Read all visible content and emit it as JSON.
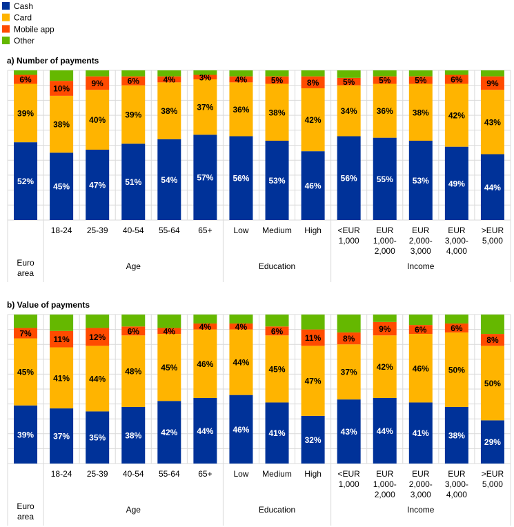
{
  "legend": [
    {
      "name": "Cash",
      "color": "#003299"
    },
    {
      "name": "Card",
      "color": "#FFB400"
    },
    {
      "name": "Mobile app",
      "color": "#FF4B00"
    },
    {
      "name": "Other",
      "color": "#65B800"
    }
  ],
  "chart_data": [
    {
      "type": "bar",
      "stacked": true,
      "title": "a) Number of payments",
      "ylim": [
        0,
        100
      ],
      "grid": true,
      "legend_position": "top-left",
      "categories": [
        [
          "Euro",
          "area"
        ],
        [
          "18-24"
        ],
        [
          "25-39"
        ],
        [
          "40-54"
        ],
        [
          "55-64"
        ],
        [
          "65+"
        ],
        [
          "Low"
        ],
        [
          "Medium"
        ],
        [
          "High"
        ],
        [
          "<EUR",
          "1,000"
        ],
        [
          "EUR",
          "1,000-",
          "2,000"
        ],
        [
          "EUR",
          "2,000-",
          "3,000"
        ],
        [
          "EUR",
          "3,000-",
          "4,000"
        ],
        [
          ">EUR",
          "5,000"
        ]
      ],
      "groups": [
        {
          "label": "Age",
          "from": 1,
          "to": 5
        },
        {
          "label": "Education",
          "from": 6,
          "to": 8
        },
        {
          "label": "Income",
          "from": 9,
          "to": 13
        }
      ],
      "series": [
        {
          "name": "Cash",
          "values": [
            52,
            45,
            47,
            51,
            54,
            57,
            56,
            53,
            46,
            56,
            55,
            53,
            49,
            44
          ]
        },
        {
          "name": "Card",
          "values": [
            39,
            38,
            40,
            39,
            38,
            37,
            36,
            38,
            42,
            34,
            36,
            38,
            42,
            43
          ]
        },
        {
          "name": "Mobile app",
          "values": [
            6,
            10,
            9,
            6,
            4,
            3,
            4,
            5,
            8,
            5,
            5,
            5,
            6,
            9
          ]
        },
        {
          "name": "Other",
          "values": [
            3,
            7,
            4,
            4,
            4,
            3,
            4,
            4,
            4,
            5,
            4,
            4,
            3,
            4
          ]
        }
      ]
    },
    {
      "type": "bar",
      "stacked": true,
      "title": "b) Value of payments",
      "ylim": [
        0,
        100
      ],
      "grid": true,
      "categories": [
        [
          "Euro",
          "area"
        ],
        [
          "18-24"
        ],
        [
          "25-39"
        ],
        [
          "40-54"
        ],
        [
          "55-64"
        ],
        [
          "65+"
        ],
        [
          "Low"
        ],
        [
          "Medium"
        ],
        [
          "High"
        ],
        [
          "<EUR",
          "1,000"
        ],
        [
          "EUR",
          "1,000-",
          "2,000"
        ],
        [
          "EUR",
          "2,000-",
          "3,000"
        ],
        [
          "EUR",
          "3,000-",
          "4,000"
        ],
        [
          ">EUR",
          "5,000"
        ]
      ],
      "groups": [
        {
          "label": "Age",
          "from": 1,
          "to": 5
        },
        {
          "label": "Education",
          "from": 6,
          "to": 8
        },
        {
          "label": "Income",
          "from": 9,
          "to": 13
        }
      ],
      "series": [
        {
          "name": "Cash",
          "values": [
            39,
            37,
            35,
            38,
            42,
            44,
            46,
            41,
            32,
            43,
            44,
            41,
            38,
            29
          ]
        },
        {
          "name": "Card",
          "values": [
            45,
            41,
            44,
            48,
            45,
            46,
            44,
            45,
            47,
            37,
            42,
            46,
            50,
            50
          ]
        },
        {
          "name": "Mobile app",
          "values": [
            7,
            11,
            12,
            6,
            4,
            4,
            4,
            6,
            11,
            8,
            9,
            6,
            6,
            8
          ]
        },
        {
          "name": "Other",
          "values": [
            9,
            11,
            9,
            8,
            9,
            6,
            6,
            8,
            10,
            12,
            5,
            7,
            6,
            13
          ]
        }
      ]
    }
  ]
}
